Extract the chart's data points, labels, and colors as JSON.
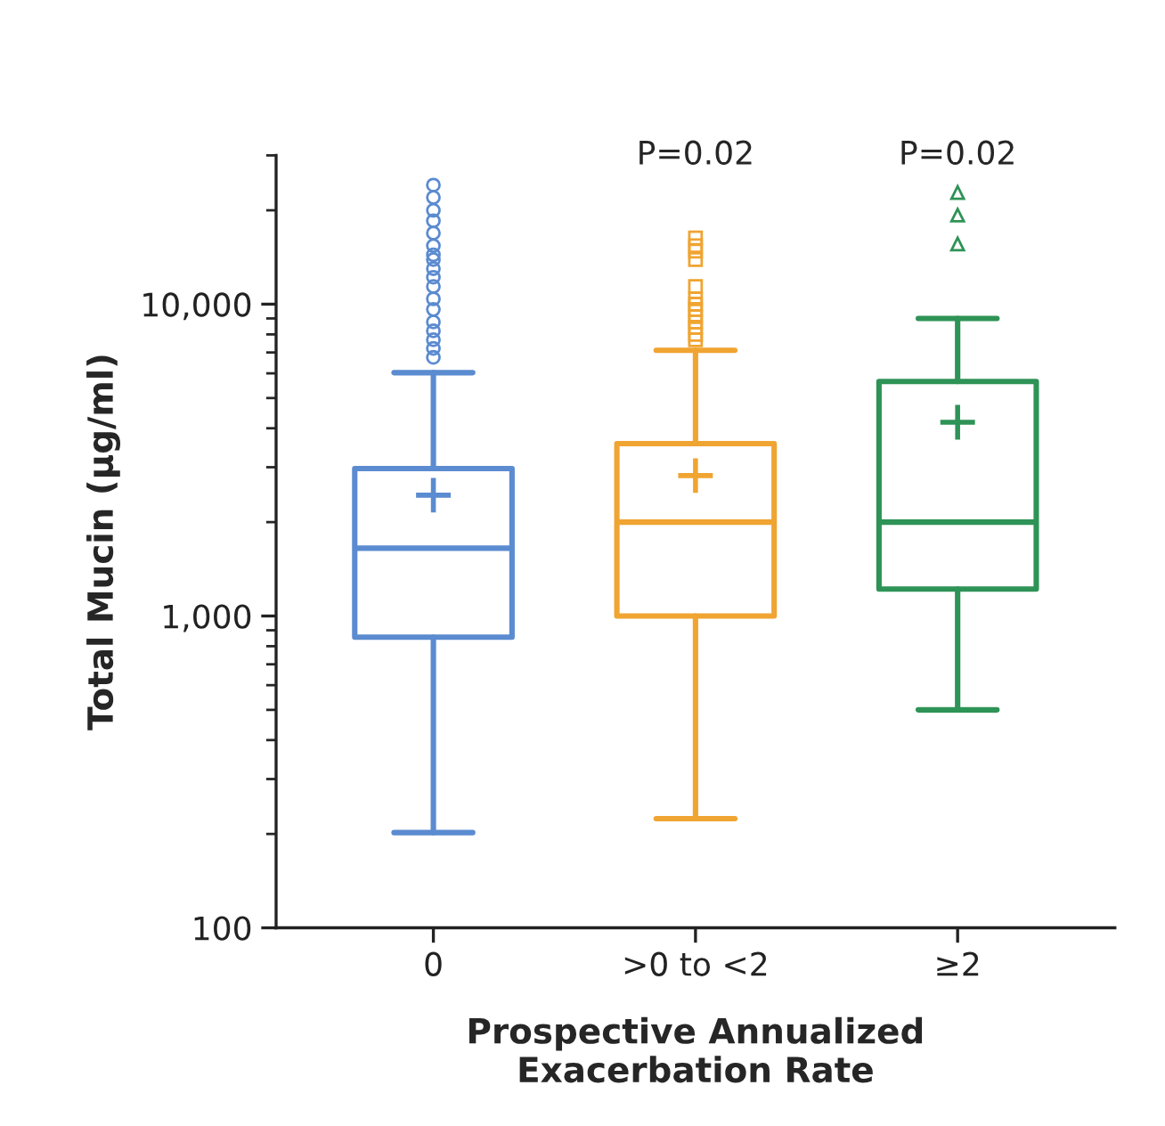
{
  "chart_data": {
    "type": "box",
    "xlabel": "Prospective Annualized\nExacerbation Rate",
    "ylabel": "Total Mucin (μg/ml)",
    "categories": [
      "0",
      ">0 to <2",
      "≥2"
    ],
    "log": true,
    "ylim": [
      100,
      30000
    ],
    "yticks": [
      {
        "value": 100,
        "label": "100"
      },
      {
        "value": 1000,
        "label": "1,000"
      },
      {
        "value": 10000,
        "label": "10,000"
      }
    ],
    "grid": false,
    "series": [
      {
        "color": "#5b8bd0",
        "marker": "circle",
        "boxes": [
          {
            "low": 202,
            "q1": 855,
            "median": 1650,
            "q3": 2970,
            "high": 6030,
            "mean": 2440,
            "outliers": [
              24100,
              22000,
              20000,
              18500,
              16900,
              15400,
              14400,
              13900,
              13000,
              12200,
              11400,
              10400,
              9620,
              8770,
              8210,
              7690,
              7210,
              6750
            ]
          },
          null,
          null
        ]
      },
      {
        "color": "#f0a431",
        "marker": "square",
        "boxes": [
          null,
          {
            "low": 224,
            "q1": 1000,
            "median": 2000,
            "q3": 3570,
            "high": 7110,
            "mean": 2820,
            "outliers": [
              16300,
              15400,
              14800,
              13900,
              11400,
              10400,
              10000,
              9620,
              9120,
              8770,
              8430,
              8000,
              7690
            ]
          },
          null
        ]
      },
      {
        "color": "#2e9356",
        "marker": "triangle",
        "boxes": [
          null,
          null,
          {
            "low": 500,
            "q1": 1220,
            "median": 2000,
            "q3": 5650,
            "high": 9000,
            "mean": 4180,
            "outliers": [
              22800,
              19300,
              15600
            ]
          }
        ]
      }
    ],
    "annotations": [
      "P=0.02",
      "P=0.02"
    ]
  }
}
